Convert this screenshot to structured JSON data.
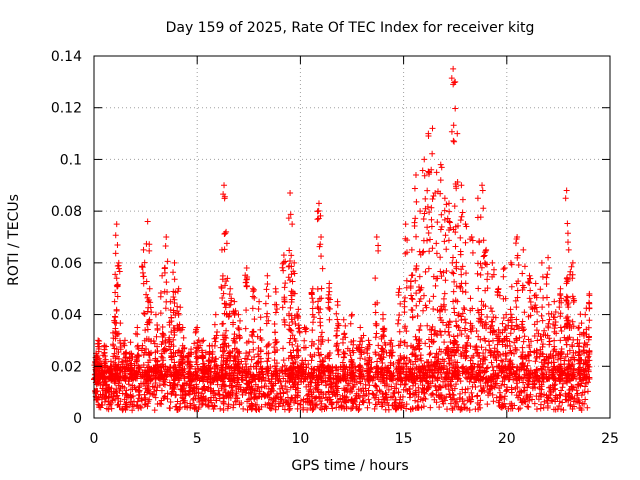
{
  "chart_data": {
    "type": "scatter",
    "title": "Day 159 of 2025, Rate Of TEC Index for receiver kitg",
    "xlabel": "GPS time / hours",
    "ylabel": "ROTI / TECUs",
    "xlim": [
      0,
      25
    ],
    "ylim": [
      0,
      0.14
    ],
    "xticks": [
      0,
      5,
      10,
      15,
      20,
      25
    ],
    "xtick_labels": [
      "0",
      "5",
      "10",
      "15",
      "20",
      "25"
    ],
    "yticks": [
      0,
      0.02,
      0.04,
      0.06,
      0.08,
      0.1,
      0.12,
      0.14
    ],
    "ytick_labels": [
      "0",
      "0.02",
      "0.04",
      "0.06",
      "0.08",
      "0.1",
      "0.12",
      "0.14"
    ],
    "grid": true,
    "marker": "+",
    "color": "#ff0000",
    "series": [
      {
        "name": "ROTI",
        "x": [
          0.0,
          0.1,
          0.2,
          0.3,
          0.5,
          0.8,
          1.0,
          1.1,
          1.2,
          1.5,
          1.8,
          2.1,
          2.4,
          2.6,
          2.7,
          3.0,
          3.3,
          3.5,
          3.7,
          3.9,
          4.1,
          4.3,
          4.6,
          5.0,
          5.3,
          5.6,
          5.9,
          6.2,
          6.3,
          6.4,
          6.6,
          6.8,
          7.0,
          7.4,
          7.7,
          8.0,
          8.4,
          8.8,
          9.2,
          9.5,
          9.6,
          9.7,
          9.9,
          10.2,
          10.6,
          10.9,
          11.0,
          11.4,
          11.8,
          12.1,
          12.5,
          12.9,
          13.3,
          13.7,
          14.0,
          14.4,
          14.8,
          15.1,
          15.4,
          15.6,
          15.8,
          16.0,
          16.2,
          16.4,
          16.6,
          16.8,
          17.0,
          17.2,
          17.4,
          17.5,
          17.6,
          17.8,
          18.0,
          18.3,
          18.6,
          18.8,
          19.0,
          19.3,
          19.6,
          19.9,
          20.2,
          20.5,
          20.8,
          21.1,
          21.4,
          21.7,
          22.0,
          22.3,
          22.6,
          22.9,
          23.0,
          23.2,
          23.5,
          23.8,
          24.0
        ],
        "y": [
          0.015,
          0.025,
          0.03,
          0.022,
          0.028,
          0.02,
          0.045,
          0.075,
          0.06,
          0.03,
          0.025,
          0.035,
          0.065,
          0.076,
          0.05,
          0.04,
          0.055,
          0.07,
          0.045,
          0.06,
          0.05,
          0.035,
          0.025,
          0.035,
          0.03,
          0.028,
          0.04,
          0.065,
          0.09,
          0.072,
          0.05,
          0.045,
          0.04,
          0.058,
          0.05,
          0.045,
          0.055,
          0.05,
          0.063,
          0.087,
          0.075,
          0.06,
          0.042,
          0.035,
          0.05,
          0.083,
          0.07,
          0.052,
          0.045,
          0.038,
          0.04,
          0.035,
          0.03,
          0.07,
          0.04,
          0.03,
          0.05,
          0.075,
          0.065,
          0.094,
          0.08,
          0.1,
          0.11,
          0.112,
          0.095,
          0.098,
          0.085,
          0.083,
          0.135,
          0.13,
          0.11,
          0.09,
          0.075,
          0.07,
          0.085,
          0.09,
          0.065,
          0.06,
          0.05,
          0.058,
          0.06,
          0.07,
          0.065,
          0.055,
          0.052,
          0.06,
          0.062,
          0.045,
          0.05,
          0.088,
          0.065,
          0.06,
          0.035,
          0.04,
          0.048
        ],
        "baseline_min": 0.003,
        "baseline_max": 0.02
      }
    ]
  }
}
